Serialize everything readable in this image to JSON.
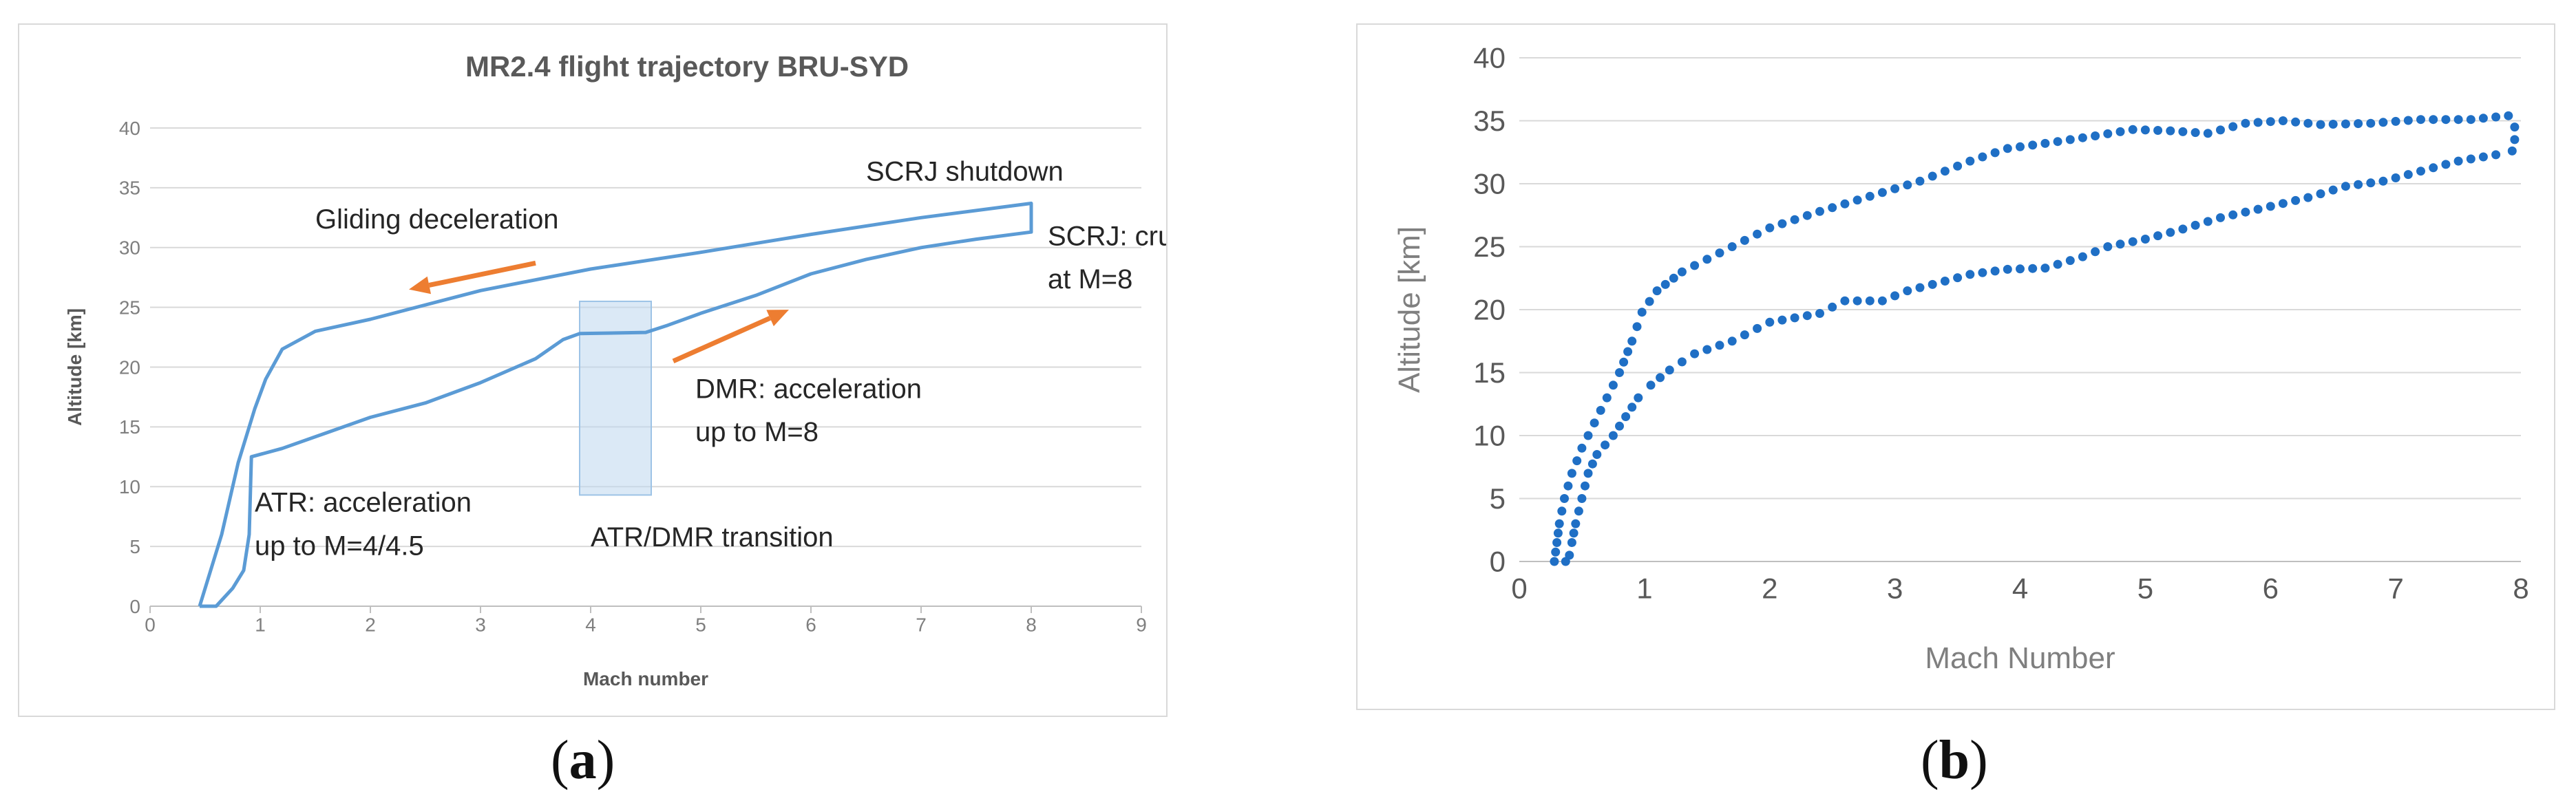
{
  "panels": {
    "a": {
      "caption_letter": "a"
    },
    "b": {
      "caption_letter": "b"
    }
  },
  "chart_data": [
    {
      "id": "a",
      "type": "line",
      "title": "MR2.4 flight trajectory BRU-SYD",
      "xlabel": "Mach number",
      "ylabel": "Altitude [km]",
      "xlim": [
        0,
        9
      ],
      "ylim": [
        0,
        40
      ],
      "xticks": [
        "0",
        "1",
        "2",
        "3",
        "4",
        "5",
        "6",
        "7",
        "8",
        "9"
      ],
      "yticks": [
        "0",
        "5",
        "10",
        "15",
        "20",
        "25",
        "30",
        "35",
        "40"
      ],
      "grid": true,
      "line_color": "#5b9bd5",
      "arrow_color": "#ed7d31",
      "box_color": "#bdd7ee",
      "series": [
        {
          "name": "",
          "points": [
            [
              0.45,
              0
            ],
            [
              0.6,
              0
            ],
            [
              0.75,
              1.5
            ],
            [
              0.85,
              3
            ],
            [
              0.9,
              6
            ],
            [
              0.92,
              12.5
            ],
            [
              1.2,
              13.2
            ],
            [
              1.6,
              14.5
            ],
            [
              2,
              15.8
            ],
            [
              2.5,
              17
            ],
            [
              3,
              18.7
            ],
            [
              3.5,
              20.7
            ],
            [
              3.75,
              22.3
            ],
            [
              3.9,
              22.8
            ],
            [
              4.5,
              22.9
            ],
            [
              4.7,
              23.5
            ],
            [
              5,
              24.5
            ],
            [
              5.5,
              26
            ],
            [
              6,
              27.8
            ],
            [
              6.5,
              29
            ],
            [
              7,
              30
            ],
            [
              7.5,
              30.7
            ],
            [
              8,
              31.3
            ],
            [
              8,
              33.7
            ],
            [
              7,
              32.5
            ],
            [
              6,
              31.1
            ],
            [
              5,
              29.6
            ],
            [
              4,
              28.2
            ],
            [
              3,
              26.4
            ],
            [
              2,
              24
            ],
            [
              1.5,
              23
            ],
            [
              1.2,
              21.5
            ],
            [
              1.05,
              19
            ],
            [
              0.95,
              16.5
            ],
            [
              0.8,
              12
            ],
            [
              0.65,
              6
            ],
            [
              0.45,
              0
            ]
          ]
        }
      ],
      "box": {
        "x": [
          3.9,
          4.55
        ],
        "y": [
          9.3,
          25.5
        ]
      },
      "arrows": [
        {
          "from": [
            3.5,
            28.7
          ],
          "to": [
            2.35,
            26.5
          ]
        },
        {
          "from": [
            4.75,
            20.5
          ],
          "to": [
            5.8,
            24.8
          ]
        }
      ],
      "annotations": [
        {
          "text": "Gliding deceleration",
          "x": 1.5,
          "y": 31.6
        },
        {
          "text": "SCRJ shutdown",
          "x": 6.5,
          "y": 35.6
        },
        {
          "text": "SCRJ: cruise",
          "x": 8.15,
          "y": 30.2
        },
        {
          "text": "at M=8",
          "x": 8.15,
          "y": 26.6
        },
        {
          "text": "DMR: acceleration",
          "x": 4.95,
          "y": 17.4
        },
        {
          "text": "up to M=8",
          "x": 4.95,
          "y": 13.8
        },
        {
          "text": "ATR: acceleration",
          "x": 0.95,
          "y": 7.9
        },
        {
          "text": "up to M=4/4.5",
          "x": 0.95,
          "y": 4.3
        },
        {
          "text": "ATR/DMR transition",
          "x": 4.0,
          "y": 5.0
        }
      ]
    },
    {
      "id": "b",
      "type": "scatter",
      "xlabel": "Mach Number",
      "ylabel": "Altitude [km]",
      "xlim": [
        0,
        8
      ],
      "ylim": [
        0,
        40
      ],
      "xticks": [
        "0",
        "1",
        "2",
        "3",
        "4",
        "5",
        "6",
        "7",
        "8"
      ],
      "yticks": [
        "0",
        "5",
        "10",
        "15",
        "20",
        "25",
        "30",
        "35",
        "40"
      ],
      "grid": true,
      "marker_color": "#1f6fc5",
      "series": [
        {
          "name": "",
          "points": [
            [
              0.28,
              0
            ],
            [
              0.3,
              1.5
            ],
            [
              0.32,
              3
            ],
            [
              0.36,
              5
            ],
            [
              0.42,
              7
            ],
            [
              0.5,
              9
            ],
            [
              0.6,
              11
            ],
            [
              0.7,
              13
            ],
            [
              0.8,
              15
            ],
            [
              0.9,
              17.5
            ],
            [
              0.98,
              19.8
            ],
            [
              1.1,
              21.5
            ],
            [
              1.3,
              23
            ],
            [
              1.5,
              24
            ],
            [
              1.8,
              25.5
            ],
            [
              2.0,
              26.5
            ],
            [
              2.4,
              27.8
            ],
            [
              2.8,
              29
            ],
            [
              3.2,
              30.2
            ],
            [
              3.6,
              31.8
            ],
            [
              3.9,
              32.8
            ],
            [
              4.2,
              33.2
            ],
            [
              4.6,
              33.8
            ],
            [
              4.9,
              34.3
            ],
            [
              5.2,
              34.2
            ],
            [
              5.5,
              34.0
            ],
            [
              5.8,
              34.8
            ],
            [
              6.1,
              35.0
            ],
            [
              6.4,
              34.7
            ],
            [
              6.8,
              34.8
            ],
            [
              7.2,
              35.1
            ],
            [
              7.6,
              35.1
            ],
            [
              7.9,
              35.4
            ],
            [
              7.95,
              34.5
            ],
            [
              7.95,
              33.5
            ],
            [
              7.93,
              32.6
            ],
            [
              7.8,
              32.3
            ],
            [
              7.5,
              31.8
            ],
            [
              7.2,
              31.0
            ],
            [
              6.9,
              30.2
            ],
            [
              6.6,
              29.8
            ],
            [
              6.3,
              28.9
            ],
            [
              6.0,
              28.2
            ],
            [
              5.6,
              27.3
            ],
            [
              5.3,
              26.4
            ],
            [
              5.0,
              25.6
            ],
            [
              4.7,
              25.0
            ],
            [
              4.5,
              24.2
            ],
            [
              4.2,
              23.3
            ],
            [
              3.9,
              23.2
            ],
            [
              3.6,
              22.8
            ],
            [
              3.3,
              22.0
            ],
            [
              3.1,
              21.5
            ],
            [
              2.9,
              20.7
            ],
            [
              2.6,
              20.7
            ],
            [
              2.4,
              19.7
            ],
            [
              2.0,
              19.0
            ],
            [
              1.7,
              17.5
            ],
            [
              1.4,
              16.5
            ],
            [
              1.2,
              15.2
            ],
            [
              1.05,
              14.0
            ],
            [
              0.95,
              13.0
            ],
            [
              0.85,
              11.5
            ],
            [
              0.75,
              10.0
            ],
            [
              0.62,
              8.5
            ],
            [
              0.55,
              7.0
            ],
            [
              0.5,
              5.0
            ],
            [
              0.45,
              3.0
            ],
            [
              0.42,
              1.5
            ],
            [
              0.4,
              0.5
            ],
            [
              0.37,
              0
            ]
          ]
        }
      ]
    }
  ]
}
